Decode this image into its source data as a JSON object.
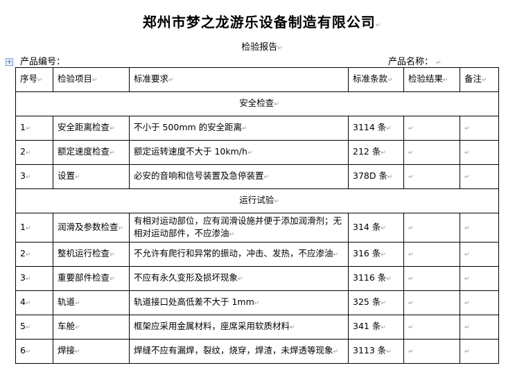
{
  "document": {
    "title": "郑州市梦之龙游乐设备制造有限公司",
    "subtitle": "检验报告",
    "product_number_label": "产品编号：",
    "product_name_label": "产品名称：",
    "paragraph_mark": "↵"
  },
  "table": {
    "headers": [
      "序号",
      "检验项目",
      "标准要求",
      "标准条款",
      "检验结果",
      "备注"
    ],
    "sections": [
      {
        "title": "安全检查",
        "rows": [
          {
            "no": "1",
            "item": "安全距离检查",
            "requirement": "不小于 500mm 的安全距离",
            "clause": "3114 条",
            "result": "",
            "remark": ""
          },
          {
            "no": "2",
            "item": "额定速度检查",
            "requirement": "额定运转速度不大于 10km/h",
            "clause": "212 条",
            "result": "",
            "remark": ""
          },
          {
            "no": "3",
            "item": "设置",
            "requirement": "必安的音响和信号装置及急停装置",
            "clause": "378D 条",
            "result": "",
            "remark": ""
          }
        ]
      },
      {
        "title": "运行试验",
        "rows": [
          {
            "no": "1",
            "item": "润滑及参数检查",
            "requirement": "有相对运动部位，应有润滑设施并便于添加润滑剂；无相对运动部件，不应渗油",
            "clause": "314 条",
            "result": "",
            "remark": ""
          },
          {
            "no": "2",
            "item": "整机运行检查",
            "requirement": "不允许有爬行和异常的振动，冲击、发热，不应渗油",
            "clause": "316 条",
            "result": "",
            "remark": ""
          },
          {
            "no": "3",
            "item": "重要部件检查",
            "requirement": "不应有永久变形及损坏现象",
            "clause": "3116 条",
            "result": "",
            "remark": ""
          },
          {
            "no": "4",
            "item": "轨道",
            "requirement": "轨道接口处高低差不大于 1mm",
            "clause": "325 条",
            "result": "",
            "remark": ""
          },
          {
            "no": "5",
            "item": "车舱",
            "requirement": "框架应采用金属材料，座席采用软质材料",
            "clause": "341 条",
            "result": "",
            "remark": ""
          },
          {
            "no": "6",
            "item": "焊接",
            "requirement": "焊缝不应有漏焊，裂纹，烧穿，焊渣，未焊透等现象",
            "clause": "3113 条",
            "result": "",
            "remark": ""
          }
        ]
      }
    ]
  }
}
